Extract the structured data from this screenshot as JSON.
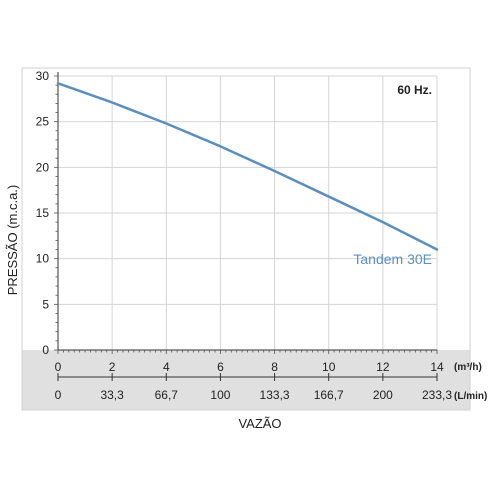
{
  "chart_data": {
    "type": "line",
    "title": "",
    "annotation": "60 Hz.",
    "xlabel": "VAZÃO",
    "ylabel": "PRESSÃO (m.c.a.)",
    "xlim": [
      0,
      14
    ],
    "ylim": [
      0,
      30
    ],
    "grid": true,
    "x_ticks": [
      0,
      2,
      4,
      6,
      8,
      10,
      12,
      14
    ],
    "y_ticks": [
      0,
      5,
      10,
      15,
      20,
      25,
      30
    ],
    "x_unit": "(m³/h)",
    "secondary_x_ticks": [
      "0",
      "33,3",
      "66,7",
      "100",
      "133,3",
      "166,7",
      "200",
      "233,3"
    ],
    "secondary_x_unit": "(L/min)",
    "series": [
      {
        "name": "Tandem 30E",
        "color": "#5b8fc0",
        "x": [
          0,
          2,
          4,
          6,
          8,
          10,
          12,
          14
        ],
        "y": [
          29.2,
          27.1,
          24.8,
          22.3,
          19.6,
          16.8,
          14.0,
          11.0
        ]
      }
    ]
  }
}
